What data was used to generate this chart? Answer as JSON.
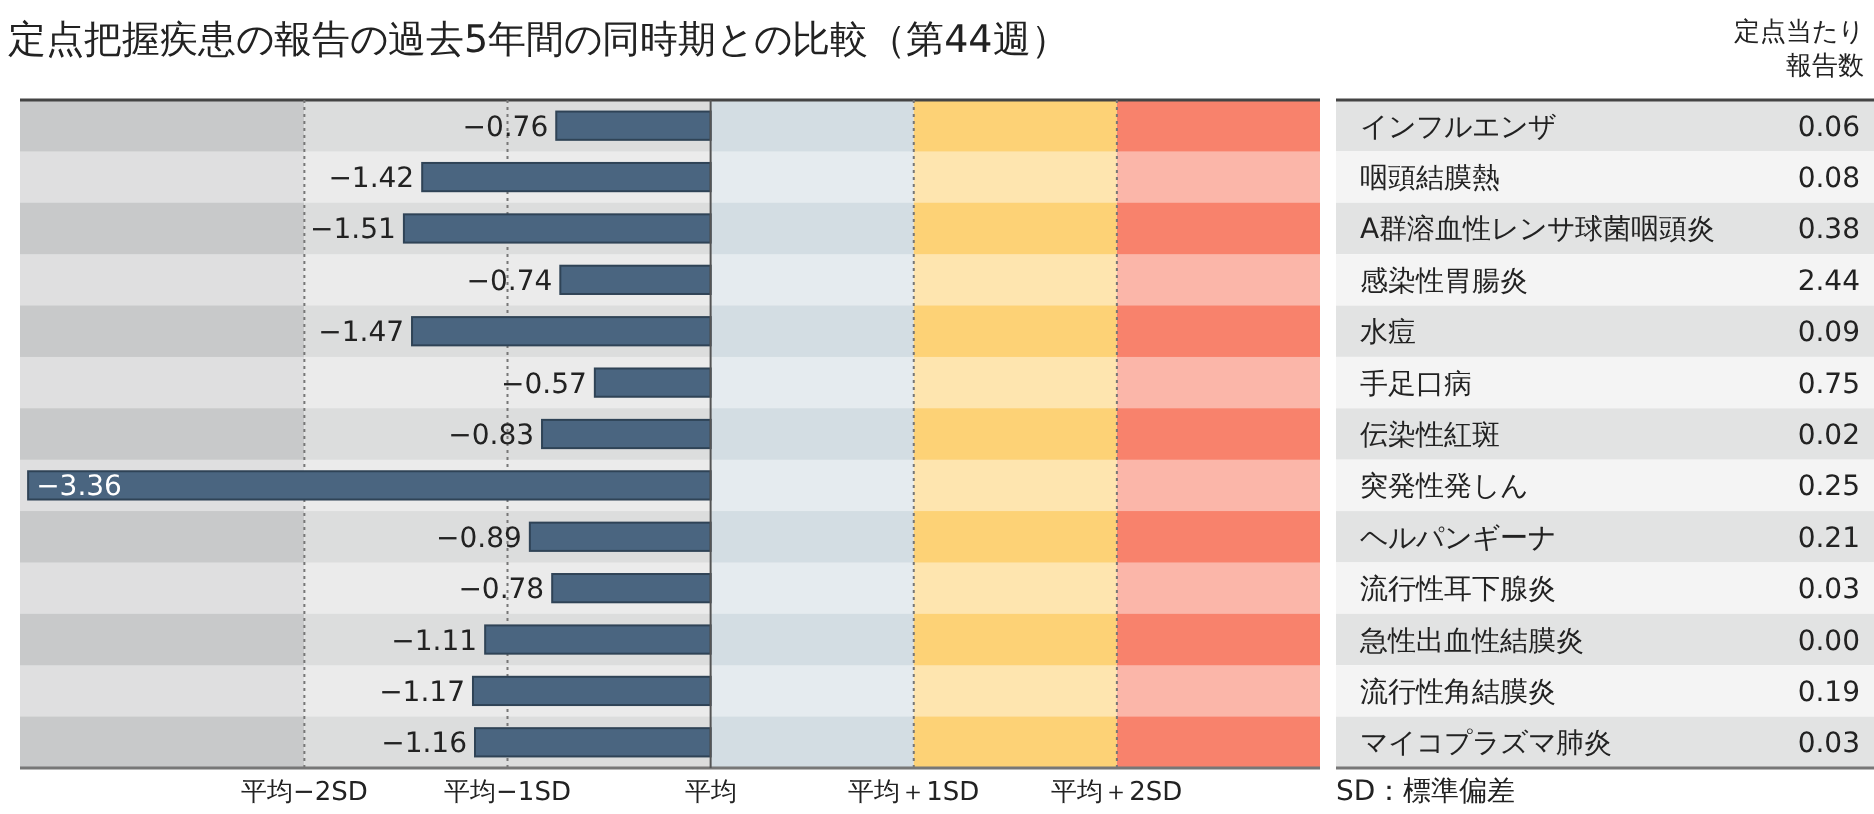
{
  "chart_data": [
    {
      "type": "bar",
      "orientation": "horizontal",
      "title": "定点把握疾患の報告の過去5年間の同時期との比較（第44週）",
      "categories": [
        "インフルエンザ",
        "咽頭結膜熱",
        "A群溶血性レンサ球菌咽頭炎",
        "感染性胃腸炎",
        "水痘",
        "手足口病",
        "伝染性紅斑",
        "突発性発しん",
        "ヘルパンギーナ",
        "流行性耳下腺炎",
        "急性出血性結膜炎",
        "流行性角結膜炎",
        "マイコプラズマ肺炎"
      ],
      "values": [
        -0.76,
        -1.42,
        -1.51,
        -0.74,
        -1.47,
        -0.57,
        -0.83,
        -3.36,
        -0.89,
        -0.78,
        -1.11,
        -1.17,
        -1.16
      ],
      "color": "#4a6580",
      "data_labels": true,
      "xlim": [
        -3.4,
        3
      ],
      "xticks": [
        {
          "value": -2,
          "label": "平均−2SD"
        },
        {
          "value": -1,
          "label": "平均−1SD"
        },
        {
          "value": 0,
          "label": "平均"
        },
        {
          "value": 1,
          "label": "平均＋1SD"
        },
        {
          "value": 2,
          "label": "平均＋2SD"
        }
      ],
      "grid": "x",
      "bands": [
        {
          "axis": "x",
          "from": -3.4,
          "to": -2,
          "color": "#c8c9ca"
        },
        {
          "axis": "x",
          "from": -2,
          "to": 0,
          "color": "#dcdddd"
        },
        {
          "axis": "x",
          "from": 0,
          "to": 1,
          "color": "#d3dde3"
        },
        {
          "axis": "x",
          "from": 1,
          "to": 2,
          "color": "#fdd276"
        },
        {
          "axis": "x",
          "from": 2,
          "to": 3,
          "color": "#f8826c"
        }
      ]
    },
    {
      "type": "other",
      "title": "定点当たり報告数",
      "values": [
        0.06,
        0.08,
        0.38,
        2.44,
        0.09,
        0.75,
        0.02,
        0.25,
        0.21,
        0.03,
        0.0,
        0.19,
        0.03
      ],
      "data_labels": true,
      "value_labels": [
        "0.06",
        "0.08",
        "0.38",
        "2.44",
        "0.09",
        "0.75",
        "0.02",
        "0.25",
        "0.21",
        "0.03",
        "0.00",
        "0.19",
        "0.03"
      ],
      "annotations": [
        "SD：標準偏差"
      ]
    }
  ]
}
